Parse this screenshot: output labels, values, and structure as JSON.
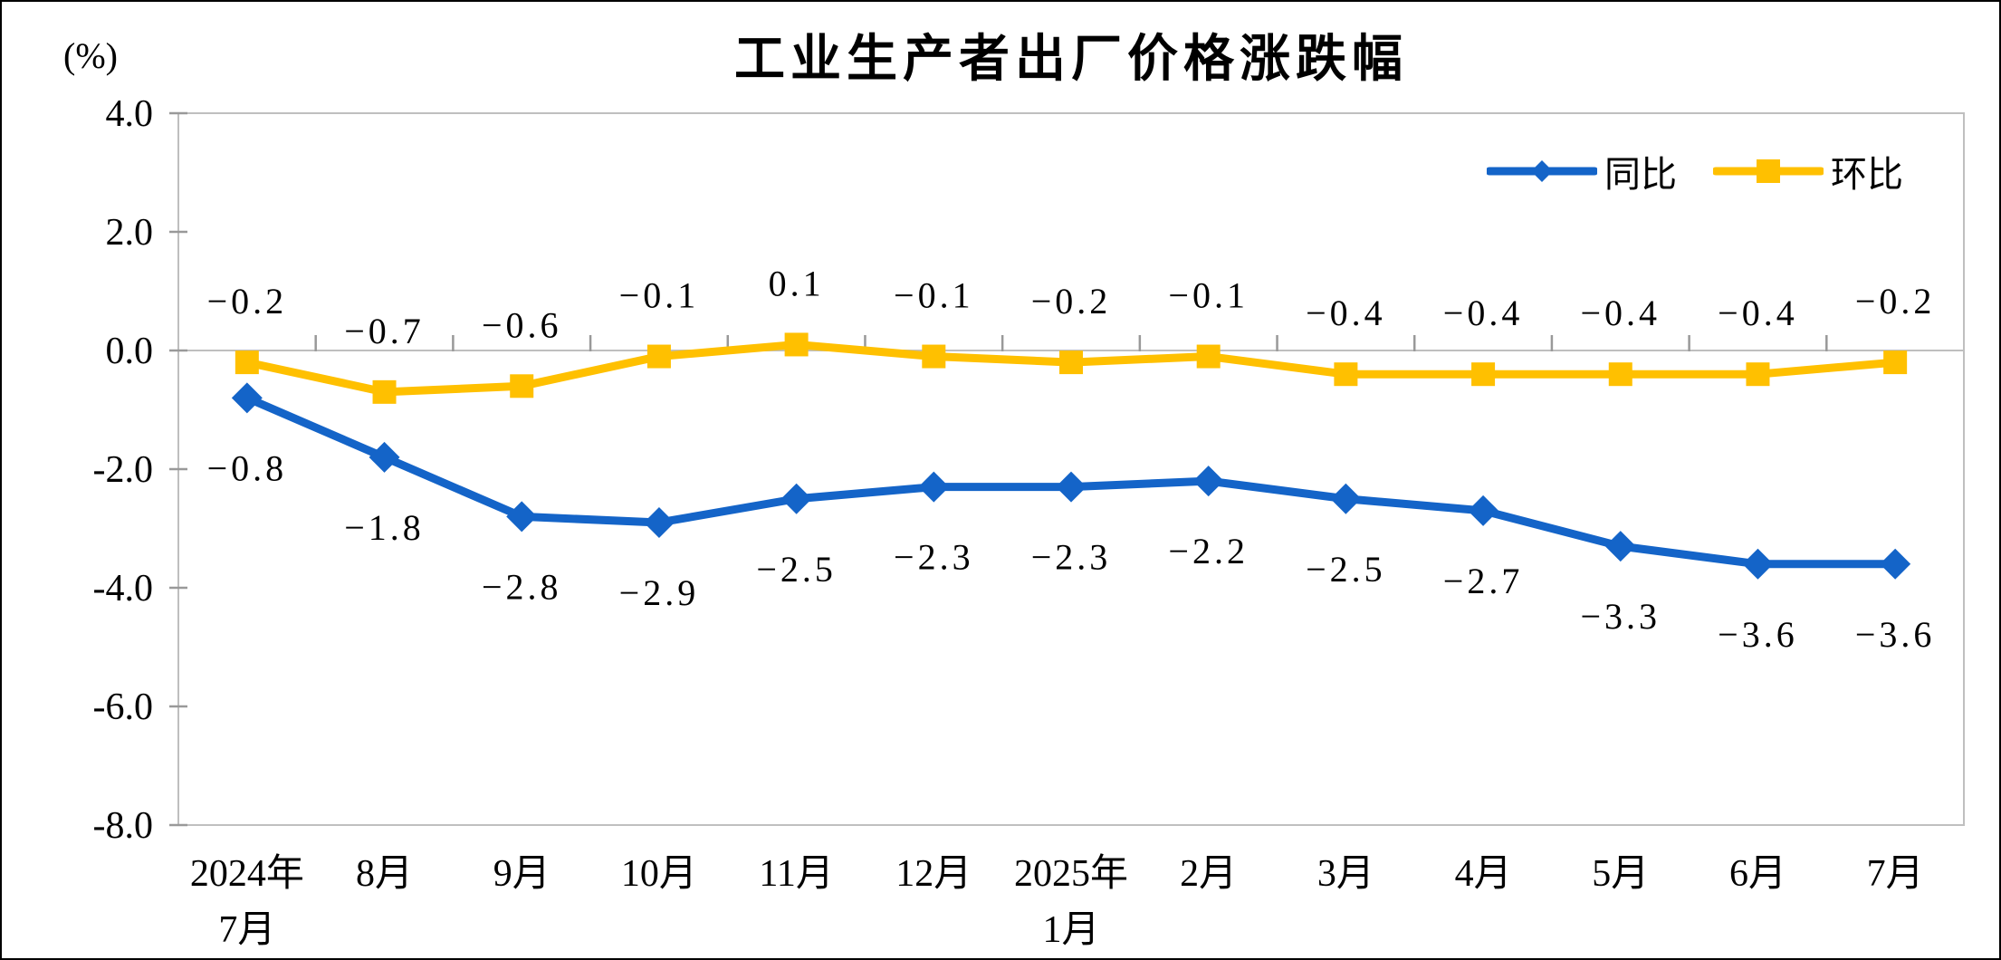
{
  "chart": {
    "title": "工业生产者出厂价格涨跌幅",
    "unit": "(%)"
  },
  "chart_data": {
    "type": "line",
    "title": "工业生产者出厂价格涨跌幅",
    "ylabel": "(%)",
    "ylim": [
      -8.0,
      4.0
    ],
    "yticks": [
      4.0,
      2.0,
      0.0,
      -2.0,
      -4.0,
      -6.0,
      -8.0
    ],
    "grid": false,
    "legend_position": "top-right-inside",
    "categories": [
      "2024年7月",
      "8月",
      "9月",
      "10月",
      "11月",
      "12月",
      "2025年1月",
      "2月",
      "3月",
      "4月",
      "5月",
      "6月",
      "7月"
    ],
    "series": [
      {
        "name": "同比",
        "color": "#1464C8",
        "marker": "diamond",
        "label_position": "below",
        "values": [
          -0.8,
          -1.8,
          -2.8,
          -2.9,
          -2.5,
          -2.3,
          -2.3,
          -2.2,
          -2.5,
          -2.7,
          -3.3,
          -3.6,
          -3.6
        ]
      },
      {
        "name": "环比",
        "color": "#FFC000",
        "marker": "square",
        "label_position": "above",
        "values": [
          -0.2,
          -0.7,
          -0.6,
          -0.1,
          0.1,
          -0.1,
          -0.2,
          -0.1,
          -0.4,
          -0.4,
          -0.4,
          -0.4,
          -0.2
        ]
      }
    ]
  }
}
